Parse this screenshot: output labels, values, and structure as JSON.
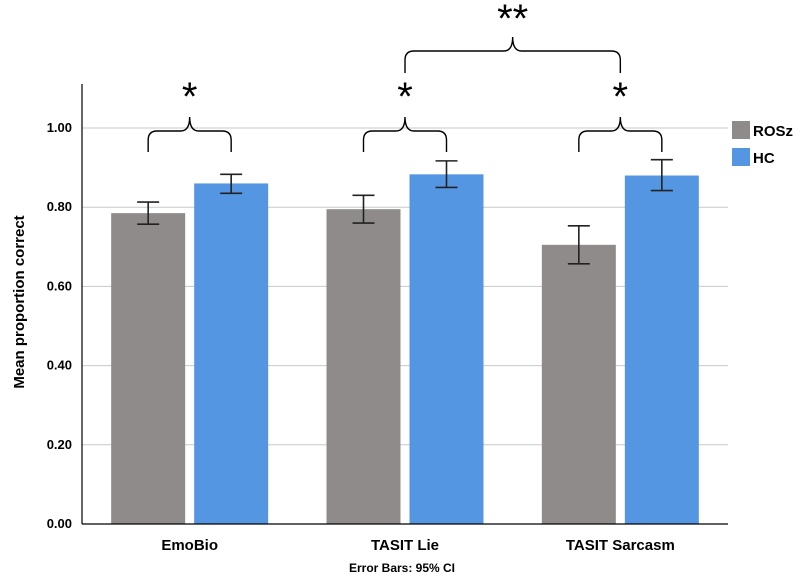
{
  "chart_data": {
    "type": "bar",
    "categories": [
      "EmoBio",
      "TASIT Lie",
      "TASIT Sarcasm"
    ],
    "series": [
      {
        "name": "ROSz",
        "color": "#8f8b8b",
        "values": [
          0.785,
          0.795,
          0.705
        ],
        "ci_low": [
          0.757,
          0.76,
          0.657
        ],
        "ci_high": [
          0.813,
          0.83,
          0.753
        ]
      },
      {
        "name": "HC",
        "color": "#5596e3",
        "values": [
          0.86,
          0.883,
          0.88
        ],
        "ci_low": [
          0.835,
          0.85,
          0.842
        ],
        "ci_high": [
          0.883,
          0.917,
          0.92
        ]
      }
    ],
    "ylabel": "Mean proportion correct",
    "xlabel": "",
    "ylim": [
      0,
      1.1
    ],
    "yticks": [
      "0.00",
      "0.20",
      "0.40",
      "0.60",
      "0.80",
      "1.00"
    ],
    "grid": true,
    "legend_position": "right",
    "footnote": "Error Bars: 95% CI",
    "annotations": [
      {
        "type": "within-category",
        "category": "EmoBio",
        "mark": "*"
      },
      {
        "type": "within-category",
        "category": "TASIT Lie",
        "mark": "*"
      },
      {
        "type": "within-category",
        "category": "TASIT Sarcasm",
        "mark": "*"
      },
      {
        "type": "between-category",
        "from": "TASIT Lie",
        "to": "TASIT Sarcasm",
        "mark": "**"
      }
    ]
  }
}
